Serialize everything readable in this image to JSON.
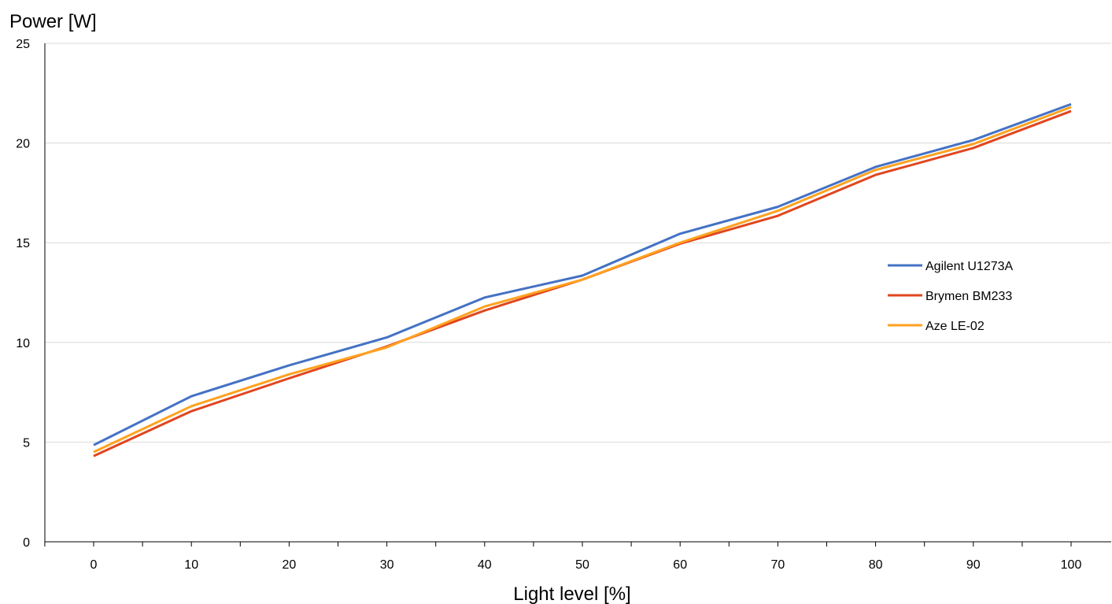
{
  "chart_data": {
    "type": "line",
    "ylabel": "Power [W]",
    "xlabel": "Light level [%]",
    "x": [
      0,
      10,
      20,
      30,
      40,
      50,
      60,
      70,
      80,
      90,
      100
    ],
    "ylim": [
      0,
      25
    ],
    "yticks": [
      0,
      5,
      10,
      15,
      20,
      25
    ],
    "grid": "horizontal",
    "legend_position": "right",
    "series": [
      {
        "name": "Agilent U1273A",
        "color": "#4472c4",
        "values": [
          4.85,
          7.3,
          8.85,
          10.25,
          12.25,
          13.35,
          15.45,
          16.8,
          18.8,
          20.15,
          21.95
        ]
      },
      {
        "name": "Brymen BM233",
        "color": "#e0461f",
        "values": [
          4.3,
          6.55,
          8.2,
          9.8,
          11.6,
          13.15,
          14.95,
          16.35,
          18.4,
          19.75,
          21.6
        ]
      },
      {
        "name": "Aze LE-02",
        "color": "#ffa21f",
        "values": [
          4.5,
          6.8,
          8.4,
          9.75,
          11.8,
          13.15,
          15.0,
          16.6,
          18.65,
          19.95,
          21.8
        ]
      }
    ]
  }
}
